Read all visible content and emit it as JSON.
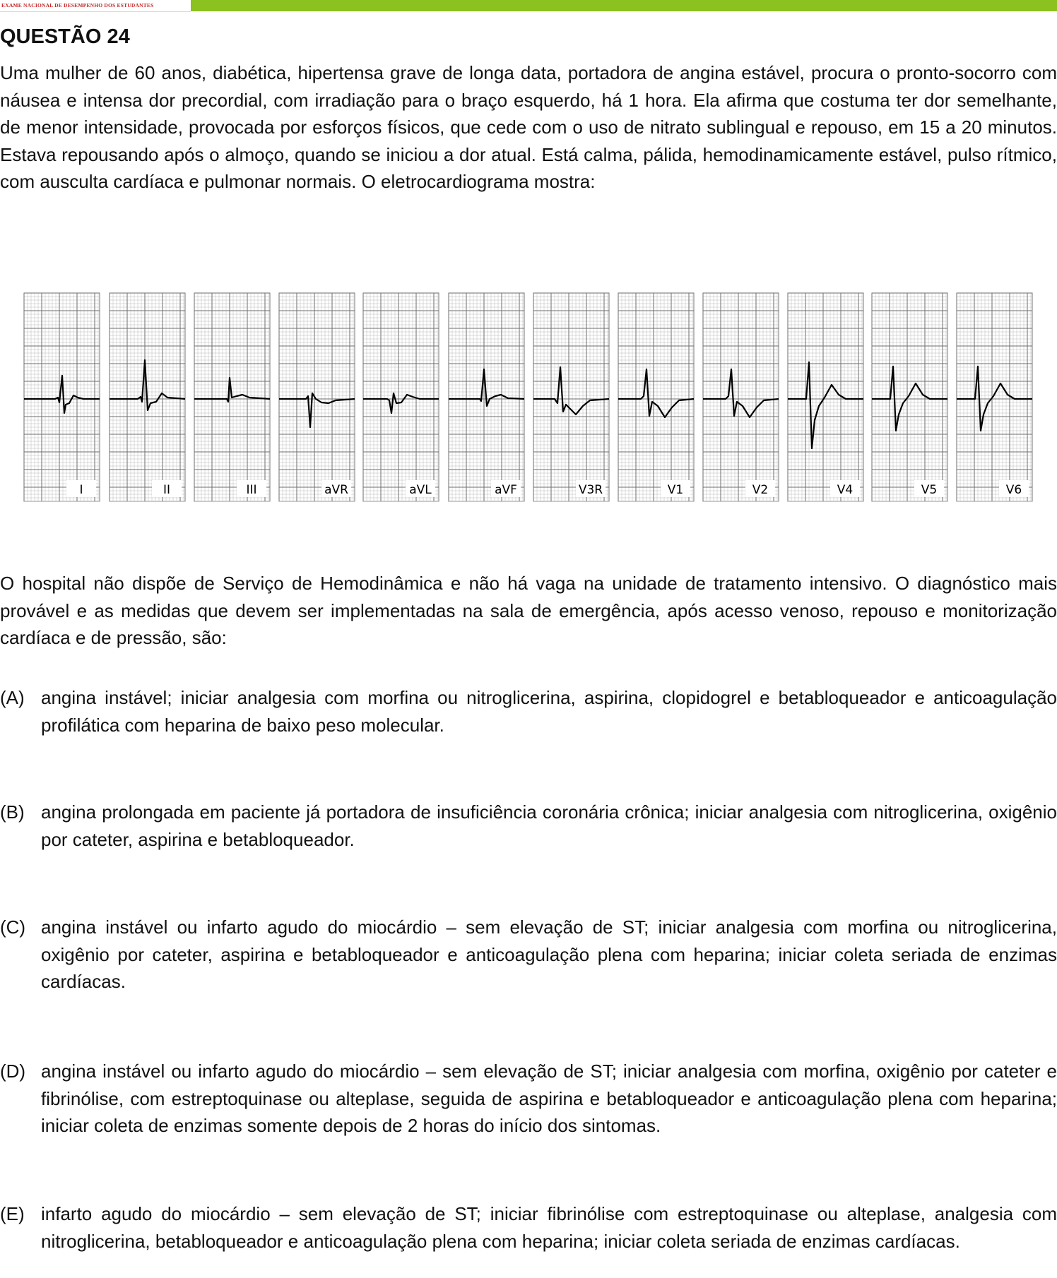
{
  "header": {
    "exam_name": "EXAME NACIONAL DE DESEMPENHO DOS ESTUDANTES",
    "bar_color": "#8cc21f"
  },
  "question": {
    "title": "QUESTÃO 24",
    "intro": "Uma mulher de 60 anos, diabética, hipertensa grave de longa data, portadora de angina estável, procura o pronto-socorro com náusea e intensa dor precordial, com irradiação para o braço esquerdo, há 1 hora. Ela afirma que costuma ter dor semelhante, de menor intensidade, provocada por esforços físicos, que cede com o uso de nitrato sublingual e repouso, em 15 a 20 minutos. Estava repousando após o almoço, quando se iniciou a dor atual. Está calma, pálida, hemodinamicamente estável, pulso rítmico, com ausculta cardíaca e pulmonar normais. O eletrocardiograma mostra:",
    "prompt": "O hospital não dispõe de Serviço de Hemodinâmica e não há vaga na unidade de tratamento intensivo. O diagnóstico mais provável e as medidas que devem ser implementadas na sala de emergência, após acesso venoso, repouso e monitorização cardíaca e de pressão, são:"
  },
  "ecg": {
    "leads": [
      "I",
      "II",
      "III",
      "aVR",
      "aVL",
      "aVF",
      "V3R",
      "V1",
      "V2",
      "V4",
      "V5",
      "V6"
    ],
    "waveforms": [
      "q-rs-st-depressed",
      "tall-r-st-depressed",
      "small-r",
      "inverted-qrs",
      "small-rs-st-depressed",
      "tall-r",
      "qr",
      "rs-t-inverted",
      "rs-t-inverted",
      "deep-rs-upright-t",
      "rs-upright-t",
      "rs-upright-t"
    ]
  },
  "options": [
    {
      "letter": "(A)",
      "text": "angina instável; iniciar analgesia com morfina ou nitroglicerina, aspirina, clopidogrel e betabloqueador e anticoagulação profilática com heparina de baixo peso molecular."
    },
    {
      "letter": "(B)",
      "text": "angina prolongada em paciente já portadora de insuficiência coronária crônica; iniciar analgesia com nitroglicerina, oxigênio por cateter, aspirina e betabloqueador."
    },
    {
      "letter": "(C)",
      "text": "angina instável ou infarto agudo do miocárdio – sem elevação de ST; iniciar analgesia com morfina ou nitroglicerina, oxigênio por cateter, aspirina e betabloqueador e anticoagulação plena com heparina; iniciar coleta seriada de enzimas cardíacas."
    },
    {
      "letter": "(D)",
      "text": "angina instável ou infarto agudo do miocárdio – sem elevação de ST; iniciar analgesia com morfina, oxigênio por cateter e fibrinólise, com estreptoquinase ou alteplase, seguida de aspirina e betabloqueador e anticoagulação plena com heparina; iniciar coleta de enzimas somente depois de 2 horas do início dos sintomas."
    },
    {
      "letter": "(E)",
      "text": "infarto agudo do miocárdio – sem elevação de ST; iniciar fibrinólise com estreptoquinase ou alteplase, analgesia com nitroglicerina, betabloqueador e anticoagulação plena com heparina; iniciar coleta seriada de enzimas cardíacas."
    }
  ]
}
